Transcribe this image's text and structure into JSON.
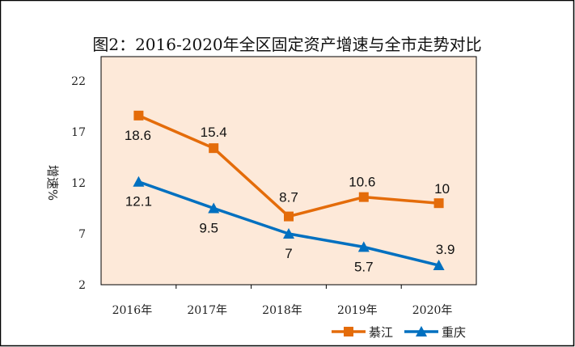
{
  "chart_data": {
    "type": "line",
    "title": "图2：2016-2020年全区固定资产增速与全市走势对比",
    "xlabel": "",
    "ylabel": "增速%",
    "categories": [
      "2016年",
      "2017年",
      "2018年",
      "2019年",
      "2020年"
    ],
    "ylim": [
      2,
      22
    ],
    "yticks": [
      2,
      7,
      12,
      17,
      22
    ],
    "grid": false,
    "legend_position": "bottom-right",
    "series": [
      {
        "name": "綦江",
        "color": "#e46c0a",
        "marker": "square",
        "values": [
          18.6,
          15.4,
          8.7,
          10.6,
          10
        ],
        "labels": [
          "18.6",
          "15.4",
          "8.7",
          "10.6",
          "10"
        ]
      },
      {
        "name": "重庆",
        "color": "#0070c0",
        "marker": "triangle",
        "values": [
          12.1,
          9.5,
          7,
          5.7,
          3.9
        ],
        "labels": [
          "12.1",
          "9.5",
          "7",
          "5.7",
          "3.9"
        ]
      }
    ],
    "plot_background": "#fde9d9"
  }
}
